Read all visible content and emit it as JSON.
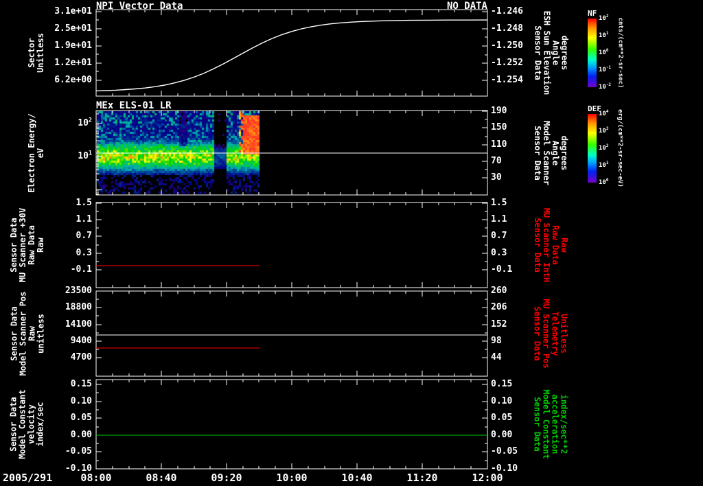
{
  "page": {
    "background": "#000000",
    "foreground": "#ffffff",
    "red": "#ff0000",
    "green": "#00cc00"
  },
  "xaxis": {
    "date": "2005/291",
    "ticks": [
      {
        "v": 8.0,
        "label": "08:00"
      },
      {
        "v": 8.6667,
        "label": "08:40"
      },
      {
        "v": 9.3333,
        "label": "09:20"
      },
      {
        "v": 10.0,
        "label": "10:00"
      },
      {
        "v": 10.6667,
        "label": "10:40"
      },
      {
        "v": 11.3333,
        "label": "11:20"
      },
      {
        "v": 12.0,
        "label": "12:00"
      }
    ]
  },
  "colorbars": [
    {
      "title": "NF",
      "unit": "cnts/(cm**2-sr-sec)",
      "ticks": [
        "10^2",
        "10^1",
        "10^0",
        "10^-1",
        "10^-2"
      ]
    },
    {
      "title": "DEF",
      "unit": "erg/(cm**2-sr-sec-eV)",
      "ticks": [
        "10^4",
        "10^3",
        "10^2",
        "10^1",
        "10^0"
      ]
    }
  ],
  "chart_data": [
    {
      "type": "line",
      "title": "NPI Vector Data",
      "annotation": "NO DATA",
      "left_axis": {
        "label_lines": [
          "Sector",
          "Unitless"
        ],
        "color": "#ffffff",
        "range": [
          0.45,
          31.75
        ],
        "ticks": [
          {
            "v": 31.0,
            "label": "3.1e+01"
          },
          {
            "v": 24.8,
            "label": "2.5e+01"
          },
          {
            "v": 18.6,
            "label": "1.9e+01"
          },
          {
            "v": 12.4,
            "label": "1.2e+01"
          },
          {
            "v": 6.2,
            "label": "6.2e+00"
          }
        ]
      },
      "right_axis": {
        "label_lines": [
          "Sensor Data",
          "ESH Sun Elevation",
          "Angle",
          "degrees"
        ],
        "color": "#ffffff",
        "range": [
          -1.2558,
          -1.2458
        ],
        "ticks": [
          {
            "v": -1.246,
            "label": "-1.246"
          },
          {
            "v": -1.248,
            "label": "-1.248"
          },
          {
            "v": -1.25,
            "label": "-1.250"
          },
          {
            "v": -1.252,
            "label": "-1.252"
          },
          {
            "v": -1.254,
            "label": "-1.254"
          }
        ]
      },
      "series": [
        {
          "name": "ESH Sun Elevation Angle",
          "axis": "right",
          "color": "#ffffff",
          "type": "curve",
          "x": [
            8.0,
            8.1,
            8.2,
            8.3,
            8.4,
            8.5,
            8.6,
            8.7,
            8.8,
            8.9,
            9.0,
            9.1,
            9.2,
            9.3,
            9.4,
            9.5,
            9.6,
            9.7,
            9.8,
            9.9,
            10.0,
            10.1,
            10.2,
            10.3,
            10.4,
            10.5,
            10.6,
            10.7,
            10.8,
            10.9,
            11.0,
            11.2,
            11.4,
            11.6,
            11.8,
            12.0
          ],
          "y": [
            -1.2552,
            -1.25516,
            -1.25512,
            -1.25505,
            -1.25497,
            -1.25486,
            -1.25471,
            -1.25453,
            -1.25428,
            -1.25398,
            -1.25361,
            -1.25317,
            -1.25265,
            -1.25208,
            -1.25147,
            -1.25084,
            -1.25022,
            -1.24965,
            -1.24913,
            -1.24869,
            -1.24832,
            -1.24802,
            -1.24778,
            -1.24759,
            -1.24744,
            -1.24733,
            -1.24725,
            -1.24718,
            -1.24714,
            -1.2471,
            -1.24708,
            -1.24704,
            -1.24702,
            -1.24701,
            -1.24701,
            -1.247
          ]
        }
      ]
    },
    {
      "type": "heatmap",
      "title": "MEx ELS-01 LR",
      "left_axis": {
        "label_lines": [
          "Electron Energy/",
          "eV"
        ],
        "color": "#ffffff",
        "log": true,
        "range": [
          0.68,
          249
        ],
        "ticks": [
          {
            "v": 100,
            "label": "10^2"
          },
          {
            "v": 10,
            "label": "10^1"
          }
        ]
      },
      "right_axis": {
        "label_lines": [
          "Sensor Data",
          "Model Scanner",
          "Angle",
          "degrees"
        ],
        "color": "#ffffff",
        "range": [
          -11,
          192
        ],
        "ticks": [
          {
            "v": 190,
            "label": "190"
          },
          {
            "v": 150,
            "label": "150"
          },
          {
            "v": 110,
            "label": "110"
          },
          {
            "v": 70,
            "label": "70"
          },
          {
            "v": 30,
            "label": "30"
          }
        ]
      },
      "series": [
        {
          "name": "Model Scanner Angle",
          "axis": "right",
          "color": "#ffffff",
          "type": "hline",
          "y": 90,
          "x": [
            8.0,
            12.0
          ]
        }
      ],
      "spectrogram": {
        "x_range_hours": [
          8.0,
          9.67
        ],
        "energy_range_eV": [
          0.68,
          249
        ],
        "description": "ELS electron energy-time spectrogram: intense green-yellow flux band near 5-20 eV, blue-green speckle above, sparse dark purple speckle below ~3 eV, flux dropout near 09:15-09:20, intense red burst ~09:32-09:40 above ~8 eV; no data after ~09:40."
      }
    },
    {
      "type": "line",
      "left_axis": {
        "label_lines": [
          "Sensor Data",
          "MU Scanner +30V",
          "Raw Data",
          "Raw"
        ],
        "color": "#ffffff",
        "range": [
          -0.53,
          1.5165
        ],
        "ticks": [
          {
            "v": 1.5,
            "label": "1.5"
          },
          {
            "v": 1.1,
            "label": "1.1"
          },
          {
            "v": 0.7,
            "label": "0.7"
          },
          {
            "v": 0.3,
            "label": "0.3"
          },
          {
            "v": -0.1,
            "label": "-0.1"
          }
        ]
      },
      "right_axis": {
        "label_lines": [
          "Sensor Data",
          "MU Scanner IntH",
          "Raw Data",
          "Raw"
        ],
        "color": "#ff0000",
        "range": [
          -0.53,
          1.5165
        ],
        "ticks": [
          {
            "v": 1.5,
            "label": "1.5"
          },
          {
            "v": 1.1,
            "label": "1.1"
          },
          {
            "v": 0.7,
            "label": "0.7"
          },
          {
            "v": 0.3,
            "label": "0.3"
          },
          {
            "v": -0.1,
            "label": "-0.1"
          }
        ]
      },
      "series": [
        {
          "name": "MU Scanner +30V Raw",
          "axis": "left",
          "color": "#ff0000",
          "type": "hline",
          "y": 0.0,
          "x": [
            8.0,
            9.67
          ]
        }
      ]
    },
    {
      "type": "line",
      "left_axis": {
        "label_lines": [
          "Sensor Data",
          "Model Scanner Pos",
          "Raw",
          "unitless"
        ],
        "color": "#ffffff",
        "range": [
          -530,
          23500
        ],
        "ticks": [
          {
            "v": 23500,
            "label": "23500"
          },
          {
            "v": 18800,
            "label": "18800"
          },
          {
            "v": 14100,
            "label": "14100"
          },
          {
            "v": 9400,
            "label": "9400"
          },
          {
            "v": 4700,
            "label": "4700"
          }
        ]
      },
      "right_axis": {
        "label_lines": [
          "Sensor Data",
          "MU Scanner Pos",
          "Telemetry",
          "Unitless"
        ],
        "color": "#ff0000",
        "range": [
          -16,
          260
        ],
        "ticks": [
          {
            "v": 260,
            "label": "260"
          },
          {
            "v": 206,
            "label": "206"
          },
          {
            "v": 152,
            "label": "152"
          },
          {
            "v": 98,
            "label": "98"
          },
          {
            "v": 44,
            "label": "44"
          }
        ]
      },
      "series": [
        {
          "name": "Model Scanner Pos Raw",
          "axis": "left",
          "color": "#ffffff",
          "type": "hline",
          "y": 11100,
          "x": [
            8.0,
            12.0
          ]
        },
        {
          "name": "MU Scanner Pos Telemetry",
          "axis": "right",
          "color": "#ff0000",
          "type": "hline",
          "y": 75,
          "x": [
            8.0,
            9.67
          ]
        }
      ]
    },
    {
      "type": "line",
      "left_axis": {
        "label_lines": [
          "Sensor Data",
          "Model Constant",
          "velocity",
          "index/sec"
        ],
        "color": "#ffffff",
        "range": [
          -0.1,
          0.1643
        ],
        "ticks": [
          {
            "v": 0.15,
            "label": "0.15"
          },
          {
            "v": 0.1,
            "label": "0.10"
          },
          {
            "v": 0.05,
            "label": "0.05"
          },
          {
            "v": 0.0,
            "label": "0.00"
          },
          {
            "v": -0.05,
            "label": "-0.05"
          },
          {
            "v": -0.1,
            "label": "-0.10"
          }
        ]
      },
      "right_axis": {
        "label_lines": [
          "Sensor Data",
          "Model Constant",
          "acceleration",
          "index/sec**2"
        ],
        "color": "#00cc00",
        "range": [
          -0.1,
          0.1643
        ],
        "ticks": [
          {
            "v": 0.15,
            "label": "0.15"
          },
          {
            "v": 0.1,
            "label": "0.10"
          },
          {
            "v": 0.05,
            "label": "0.05"
          },
          {
            "v": 0.0,
            "label": "0.00"
          },
          {
            "v": -0.05,
            "label": "-0.05"
          },
          {
            "v": -0.1,
            "label": "-0.10"
          }
        ]
      },
      "series": [
        {
          "name": "Model Constant velocity",
          "axis": "left",
          "color": "#00cc00",
          "type": "hline",
          "y": 0.0,
          "x": [
            8.0,
            12.0
          ]
        }
      ]
    }
  ]
}
